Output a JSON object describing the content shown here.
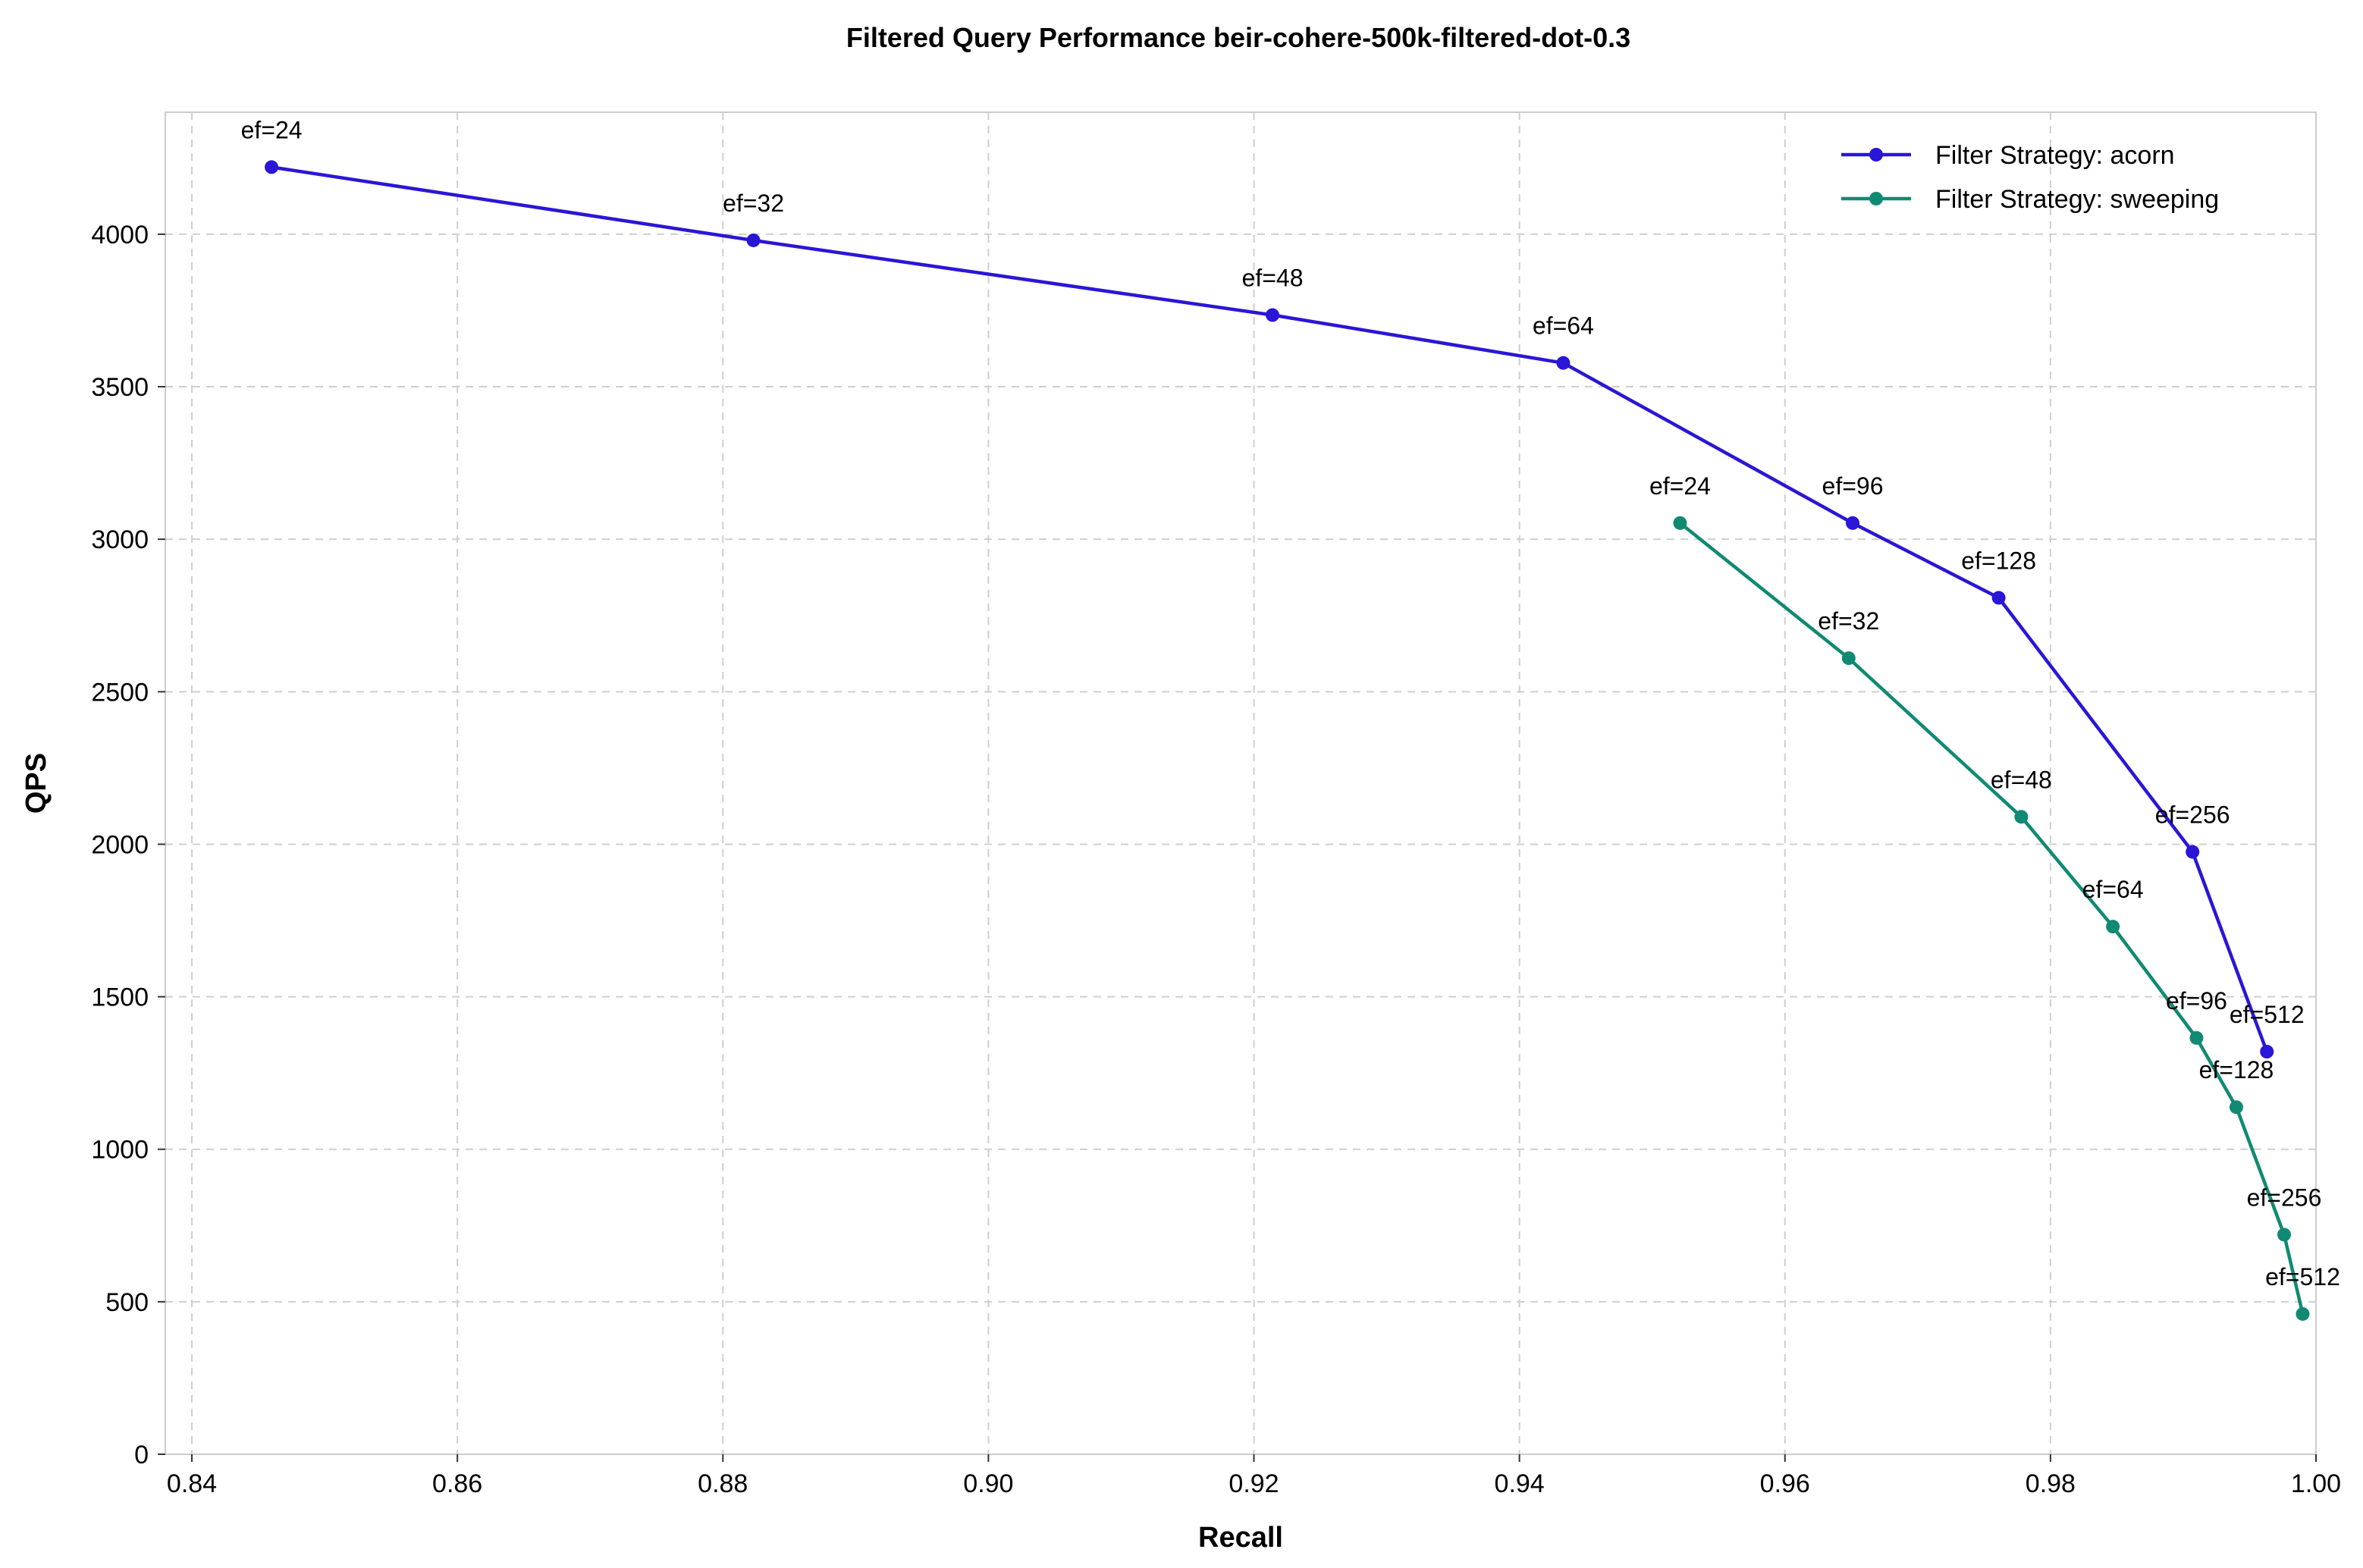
{
  "chart_data": {
    "type": "line",
    "title": "Filtered Query Performance beir-cohere-500k-filtered-dot-0.3",
    "xlabel": "Recall",
    "ylabel": "QPS",
    "xlim": [
      0.838,
      1.0
    ],
    "ylim": [
      0,
      4400
    ],
    "xticks": [
      "0.84",
      "0.86",
      "0.88",
      "0.90",
      "0.92",
      "0.94",
      "0.96",
      "0.98",
      "1.00"
    ],
    "yticks": [
      "0",
      "500",
      "1000",
      "1500",
      "2000",
      "2500",
      "3000",
      "3500",
      "4000"
    ],
    "grid": true,
    "legend_position": "top-right",
    "series": [
      {
        "name": "Filter Strategy: acorn",
        "color": "#2a16d6",
        "x": [
          0.846,
          0.8823,
          0.9214,
          0.9433,
          0.9651,
          0.9761,
          0.9907,
          0.9963
        ],
        "y": [
          4220,
          3980,
          3735,
          3578,
          3053,
          2808,
          1975,
          1320
        ],
        "labels": [
          "ef=24",
          "ef=32",
          "ef=48",
          "ef=64",
          "ef=96",
          "ef=128",
          "ef=256",
          "ef=512"
        ]
      },
      {
        "name": "Filter Strategy: sweeping",
        "color": "#108a72",
        "x": [
          0.9521,
          0.9648,
          0.9778,
          0.9847,
          0.991,
          0.994,
          0.9976,
          0.999
        ],
        "y": [
          3053,
          2610,
          2090,
          1730,
          1365,
          1138,
          720,
          460
        ],
        "labels": [
          "ef=24",
          "ef=32",
          "ef=48",
          "ef=64",
          "ef=96",
          "ef=128",
          "ef=256",
          "ef=512"
        ]
      }
    ]
  }
}
